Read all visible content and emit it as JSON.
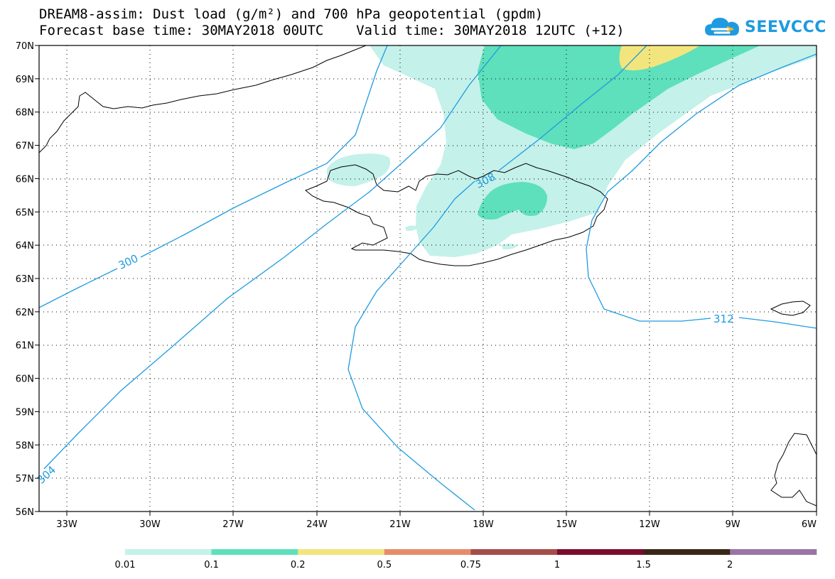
{
  "header": {
    "title_line1": "DREAM8-assim: Dust load (g/m²) and 700 hPa geopotential (gpdm)",
    "title_line2": "Forecast base time: 30MAY2018 00UTC    Valid time: 30MAY2018 12UTC (+12)",
    "logo_text": "SEEVCCC"
  },
  "map": {
    "lon_labels": [
      "33W",
      "30W",
      "27W",
      "24W",
      "21W",
      "18W",
      "15W",
      "12W",
      "9W",
      "6W"
    ],
    "lat_labels": [
      "70N",
      "69N",
      "68N",
      "67N",
      "66N",
      "65N",
      "64N",
      "63N",
      "62N",
      "61N",
      "60N",
      "59N",
      "58N",
      "57N",
      "56N"
    ],
    "contour_labels": [
      "300",
      "304",
      "308",
      "312"
    ],
    "contour_color": "#1e9be0"
  },
  "colorbar": {
    "labels": [
      "0.01",
      "0.1",
      "0.2",
      "0.5",
      "0.75",
      "1",
      "1.5",
      "2"
    ],
    "colors": [
      "#c4f1ea",
      "#5de0bb",
      "#f3e57d",
      "#e68c6a",
      "#a54d48",
      "#7b0d2c",
      "#3a2616",
      "#9a74a4"
    ]
  }
}
